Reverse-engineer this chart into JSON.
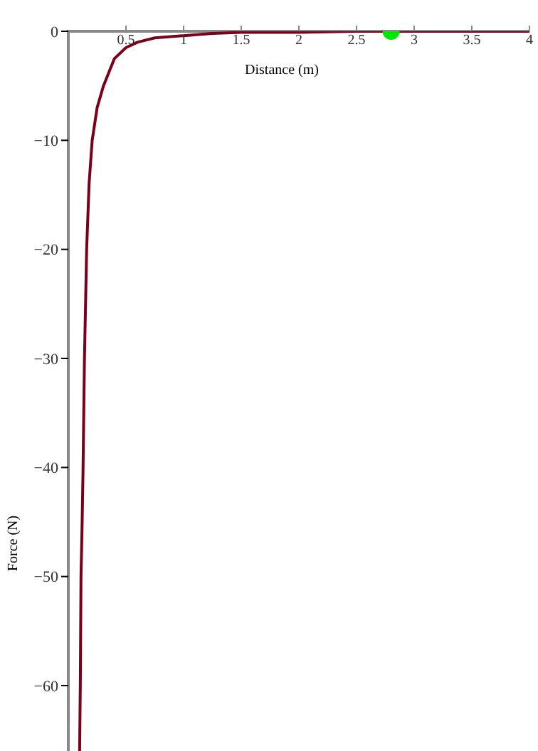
{
  "chart_data": {
    "type": "line",
    "xlabel": "Distance (m)",
    "ylabel": "Force (N)",
    "xlim": [
      0,
      4
    ],
    "ylim": [
      -66,
      0
    ],
    "xticks": [
      0.5,
      1,
      1.5,
      2,
      2.5,
      3,
      3.5,
      4
    ],
    "yticks": [
      -60,
      -50,
      -40,
      -30,
      -20,
      -10,
      0
    ],
    "grid": false,
    "line_style": "solid",
    "series": [
      {
        "color": "#7a0019",
        "x": [
          0.098,
          0.104,
          0.11,
          0.12,
          0.128,
          0.14,
          0.159,
          0.18,
          0.207,
          0.25,
          0.305,
          0.4,
          0.5,
          0.6,
          0.75,
          1,
          1.25,
          1.5,
          2,
          2.5,
          3,
          3.5,
          4
        ],
        "values": [
          -66,
          -60,
          -50,
          -45,
          -40,
          -30,
          -20,
          -14,
          -10,
          -7,
          -5,
          -2.5,
          -1.5,
          -1,
          -0.6,
          -0.4,
          -0.2,
          -0.1,
          -0.1,
          0,
          0,
          0,
          0
        ]
      },
      {
        "type": "scatter",
        "color": "#00e600",
        "x": [
          2.8
        ],
        "values": [
          0
        ]
      }
    ]
  }
}
